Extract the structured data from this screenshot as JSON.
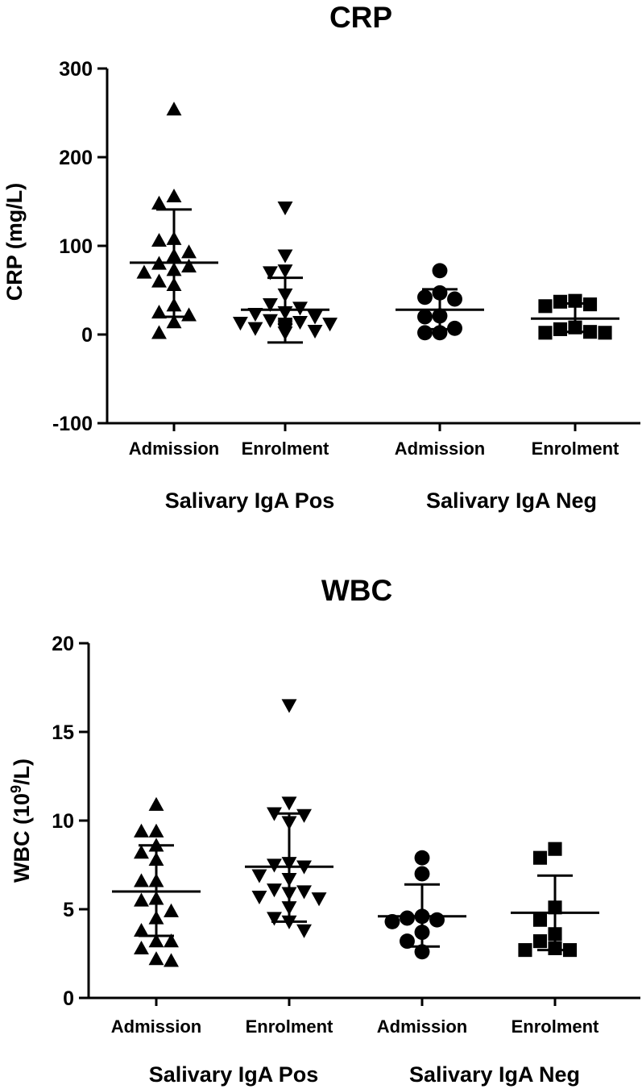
{
  "chart_data": [
    {
      "type": "scatter",
      "title": "CRP",
      "ylabel": "CRP (mg/L)",
      "ylim": [
        -100,
        300
      ],
      "yticks": [
        -100,
        0,
        100,
        200,
        300
      ],
      "grid": false,
      "categories": [
        "Admission",
        "Enrolment",
        "Admission",
        "Enrolment"
      ],
      "groups": [
        "Salivary IgA Pos",
        "Salivary IgA Neg"
      ],
      "series": [
        {
          "group": "Salivary IgA Pos",
          "category": "Admission",
          "marker": "triangle-up",
          "values": [
            254,
            156,
            148,
            108,
            106,
            93,
            89,
            80,
            77,
            73,
            70,
            60,
            56,
            33,
            25,
            22,
            14,
            2
          ],
          "mean": 81,
          "sd_low": 20,
          "sd_high": 141
        },
        {
          "group": "Salivary IgA Pos",
          "category": "Enrolment",
          "marker": "triangle-down",
          "values": [
            143,
            89,
            72,
            70,
            45,
            34,
            30,
            25,
            23,
            20,
            16,
            14,
            13,
            12,
            12,
            10,
            8,
            7,
            6,
            5,
            4,
            2
          ],
          "mean": 28,
          "sd_low": -9,
          "sd_high": 64
        },
        {
          "group": "Salivary IgA Neg",
          "category": "Admission",
          "marker": "circle",
          "values": [
            72,
            47,
            42,
            40,
            21,
            20,
            7,
            2,
            2
          ],
          "mean": 28,
          "sd_low": 6,
          "sd_high": 51
        },
        {
          "group": "Salivary IgA Neg",
          "category": "Enrolment",
          "marker": "square",
          "values": [
            38,
            37,
            34,
            32,
            8,
            6,
            3,
            2,
            2
          ],
          "mean": 18,
          "sd_low": 3,
          "sd_high": 35
        }
      ]
    },
    {
      "type": "scatter",
      "title": "WBC",
      "ylabel_main": "WBC (10",
      "ylabel_sup": "9",
      "ylabel_end": "/L)",
      "ylim": [
        0,
        20
      ],
      "yticks": [
        0,
        5,
        10,
        15,
        20
      ],
      "grid": false,
      "categories": [
        "Admission",
        "Enrolment",
        "Admission",
        "Enrolment"
      ],
      "groups": [
        "Salivary IgA Pos",
        "Salivary IgA Neg"
      ],
      "series": [
        {
          "group": "Salivary IgA Pos",
          "category": "Admission",
          "marker": "triangle-up",
          "values": [
            10.9,
            9.4,
            9.4,
            8.6,
            8.2,
            7.8,
            6.6,
            6.6,
            5.6,
            5.5,
            4.9,
            4.5,
            3.8,
            3.2,
            3.2,
            2.8,
            2.2,
            2.1
          ],
          "mean": 6.0,
          "sd_low": 3.5,
          "sd_high": 8.6
        },
        {
          "group": "Salivary IgA Pos",
          "category": "Enrolment",
          "marker": "triangle-down",
          "values": [
            16.5,
            11.0,
            10.4,
            10.3,
            9.9,
            7.6,
            7.5,
            7.4,
            6.9,
            6.7,
            6.1,
            6.0,
            5.9,
            5.7,
            5.6,
            5.1,
            4.5,
            4.3,
            3.8
          ],
          "mean": 7.4,
          "sd_low": 4.3,
          "sd_high": 10.4
        },
        {
          "group": "Salivary IgA Neg",
          "category": "Admission",
          "marker": "circle",
          "values": [
            7.9,
            7.0,
            4.6,
            4.5,
            4.4,
            4.3,
            3.7,
            3.2,
            2.6
          ],
          "mean": 4.6,
          "sd_low": 2.9,
          "sd_high": 6.4
        },
        {
          "group": "Salivary IgA Neg",
          "category": "Enrolment",
          "marker": "square",
          "values": [
            8.4,
            7.9,
            5.1,
            4.4,
            3.6,
            3.2,
            2.8,
            2.7,
            2.7
          ],
          "mean": 4.8,
          "sd_low": 2.7,
          "sd_high": 6.9
        }
      ]
    }
  ]
}
